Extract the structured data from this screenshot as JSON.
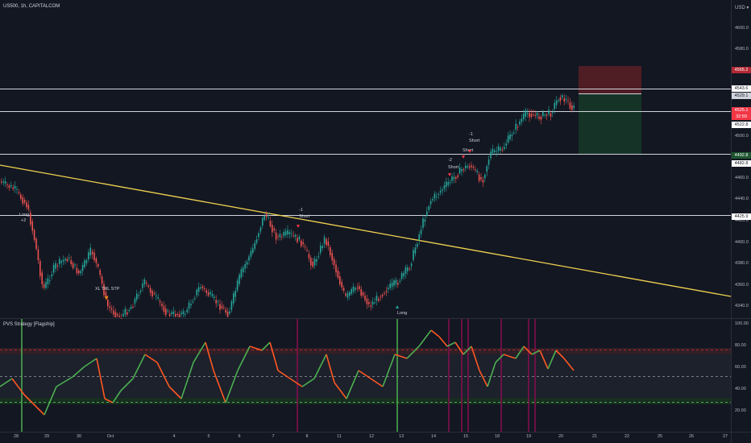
{
  "symbol_title": "US500, 1h, CAPITALCOM",
  "currency": "USD",
  "lower_pane_title": "PVS Strategy [Flagship]",
  "price_axis": {
    "ticks": [
      "4600.0",
      "4580.0",
      "4560.0",
      "4500.0",
      "4480.0",
      "4460.0",
      "4440.0",
      "4420.0",
      "4400.0",
      "4380.0",
      "4360.0",
      "4340.0"
    ],
    "labels": [
      {
        "text": "4565.2",
        "bg": "#b22833",
        "fg": "#ffffff"
      },
      {
        "text": "4543.6",
        "bg": "#ffffff",
        "fg": "#131722"
      },
      {
        "text": "4529.1",
        "bg": "#d1d4dc",
        "fg": "#131722"
      },
      {
        "text": "4525.1",
        "bg": "#f23645",
        "fg": "#ffffff"
      },
      {
        "text": "32:59",
        "bg": "#f23645",
        "fg": "#ffffff"
      },
      {
        "text": "4522.8",
        "bg": "#ffffff",
        "fg": "#131722"
      },
      {
        "text": "4492.8",
        "bg": "#1e5530",
        "fg": "#ffffff"
      },
      {
        "text": "4482.8",
        "bg": "#ffffff",
        "fg": "#131722"
      },
      {
        "text": "4425.9",
        "bg": "#ffffff",
        "fg": "#131722"
      }
    ]
  },
  "osc_axis": {
    "ticks": [
      "100.00",
      "80.00",
      "60.00",
      "40.00",
      "20.00"
    ]
  },
  "time_axis": [
    "28",
    "29",
    "30",
    "Oct",
    "4",
    "5",
    "6",
    "7",
    "8",
    "11",
    "12",
    "13",
    "14",
    "15",
    "18",
    "19",
    "20",
    "21",
    "22",
    "25",
    "26",
    "27",
    "28"
  ],
  "markers": [
    {
      "text": "Long",
      "kind": "long"
    },
    {
      "text": "+2",
      "kind": "long"
    },
    {
      "text": "XL TRL STP",
      "kind": "exit"
    },
    {
      "text": "-1",
      "kind": "short"
    },
    {
      "text": "Short",
      "kind": "short"
    },
    {
      "text": "-2",
      "kind": "short"
    },
    {
      "text": "Short",
      "kind": "short"
    },
    {
      "text": "Short",
      "kind": "short"
    },
    {
      "text": "-1",
      "kind": "short"
    },
    {
      "text": "Short",
      "kind": "short"
    },
    {
      "text": "Long",
      "kind": "long"
    }
  ],
  "colors": {
    "background": "#131722",
    "up": "#26a69a",
    "down": "#ef5350",
    "trendline": "#f2d34f",
    "stop_zone": "#5a1e24",
    "target_zone": "#163a28",
    "osc_up": "#4caf50",
    "osc_down": "#ff5722",
    "short_signal": "#880e4f",
    "long_signal": "#4caf50"
  }
}
